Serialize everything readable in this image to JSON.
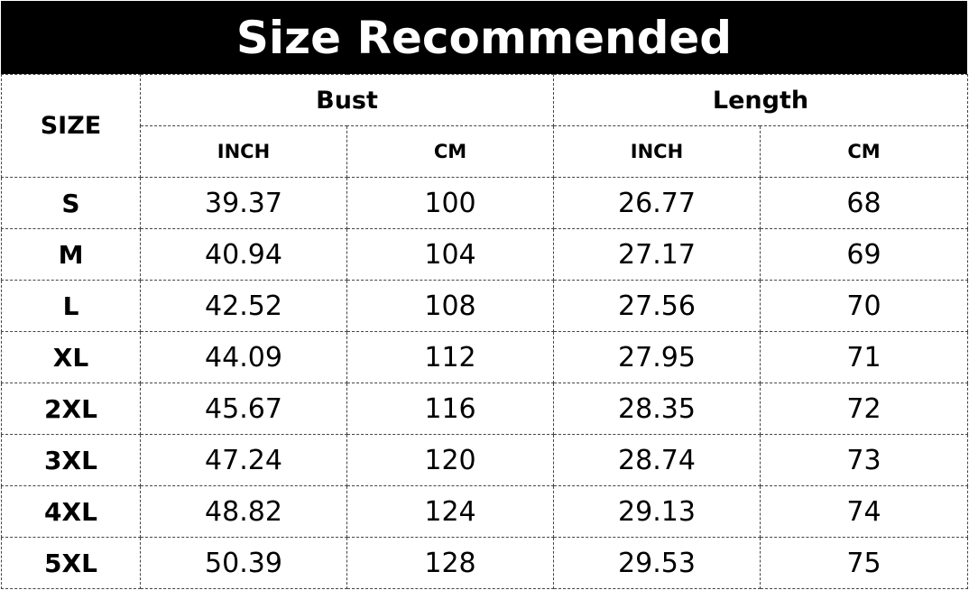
{
  "title": "Size Recommended",
  "headers": {
    "size": "SIZE",
    "bust": "Bust",
    "length": "Length",
    "bust_inch": "INCH",
    "bust_cm": "CM",
    "length_inch": "INCH",
    "length_cm": "CM"
  },
  "rows": [
    {
      "size": "S",
      "bust_inch": "39.37",
      "bust_cm": "100",
      "length_inch": "26.77",
      "length_cm": "68"
    },
    {
      "size": "M",
      "bust_inch": "40.94",
      "bust_cm": "104",
      "length_inch": "27.17",
      "length_cm": "69"
    },
    {
      "size": "L",
      "bust_inch": "42.52",
      "bust_cm": "108",
      "length_inch": "27.56",
      "length_cm": "70"
    },
    {
      "size": "XL",
      "bust_inch": "44.09",
      "bust_cm": "112",
      "length_inch": "27.95",
      "length_cm": "71"
    },
    {
      "size": "2XL",
      "bust_inch": "45.67",
      "bust_cm": "116",
      "length_inch": "28.35",
      "length_cm": "72"
    },
    {
      "size": "3XL",
      "bust_inch": "47.24",
      "bust_cm": "120",
      "length_inch": "28.74",
      "length_cm": "73"
    },
    {
      "size": "4XL",
      "bust_inch": "48.82",
      "bust_cm": "124",
      "length_inch": "29.13",
      "length_cm": "74"
    },
    {
      "size": "5XL",
      "bust_inch": "50.39",
      "bust_cm": "128",
      "length_inch": "29.53",
      "length_cm": "75"
    }
  ]
}
